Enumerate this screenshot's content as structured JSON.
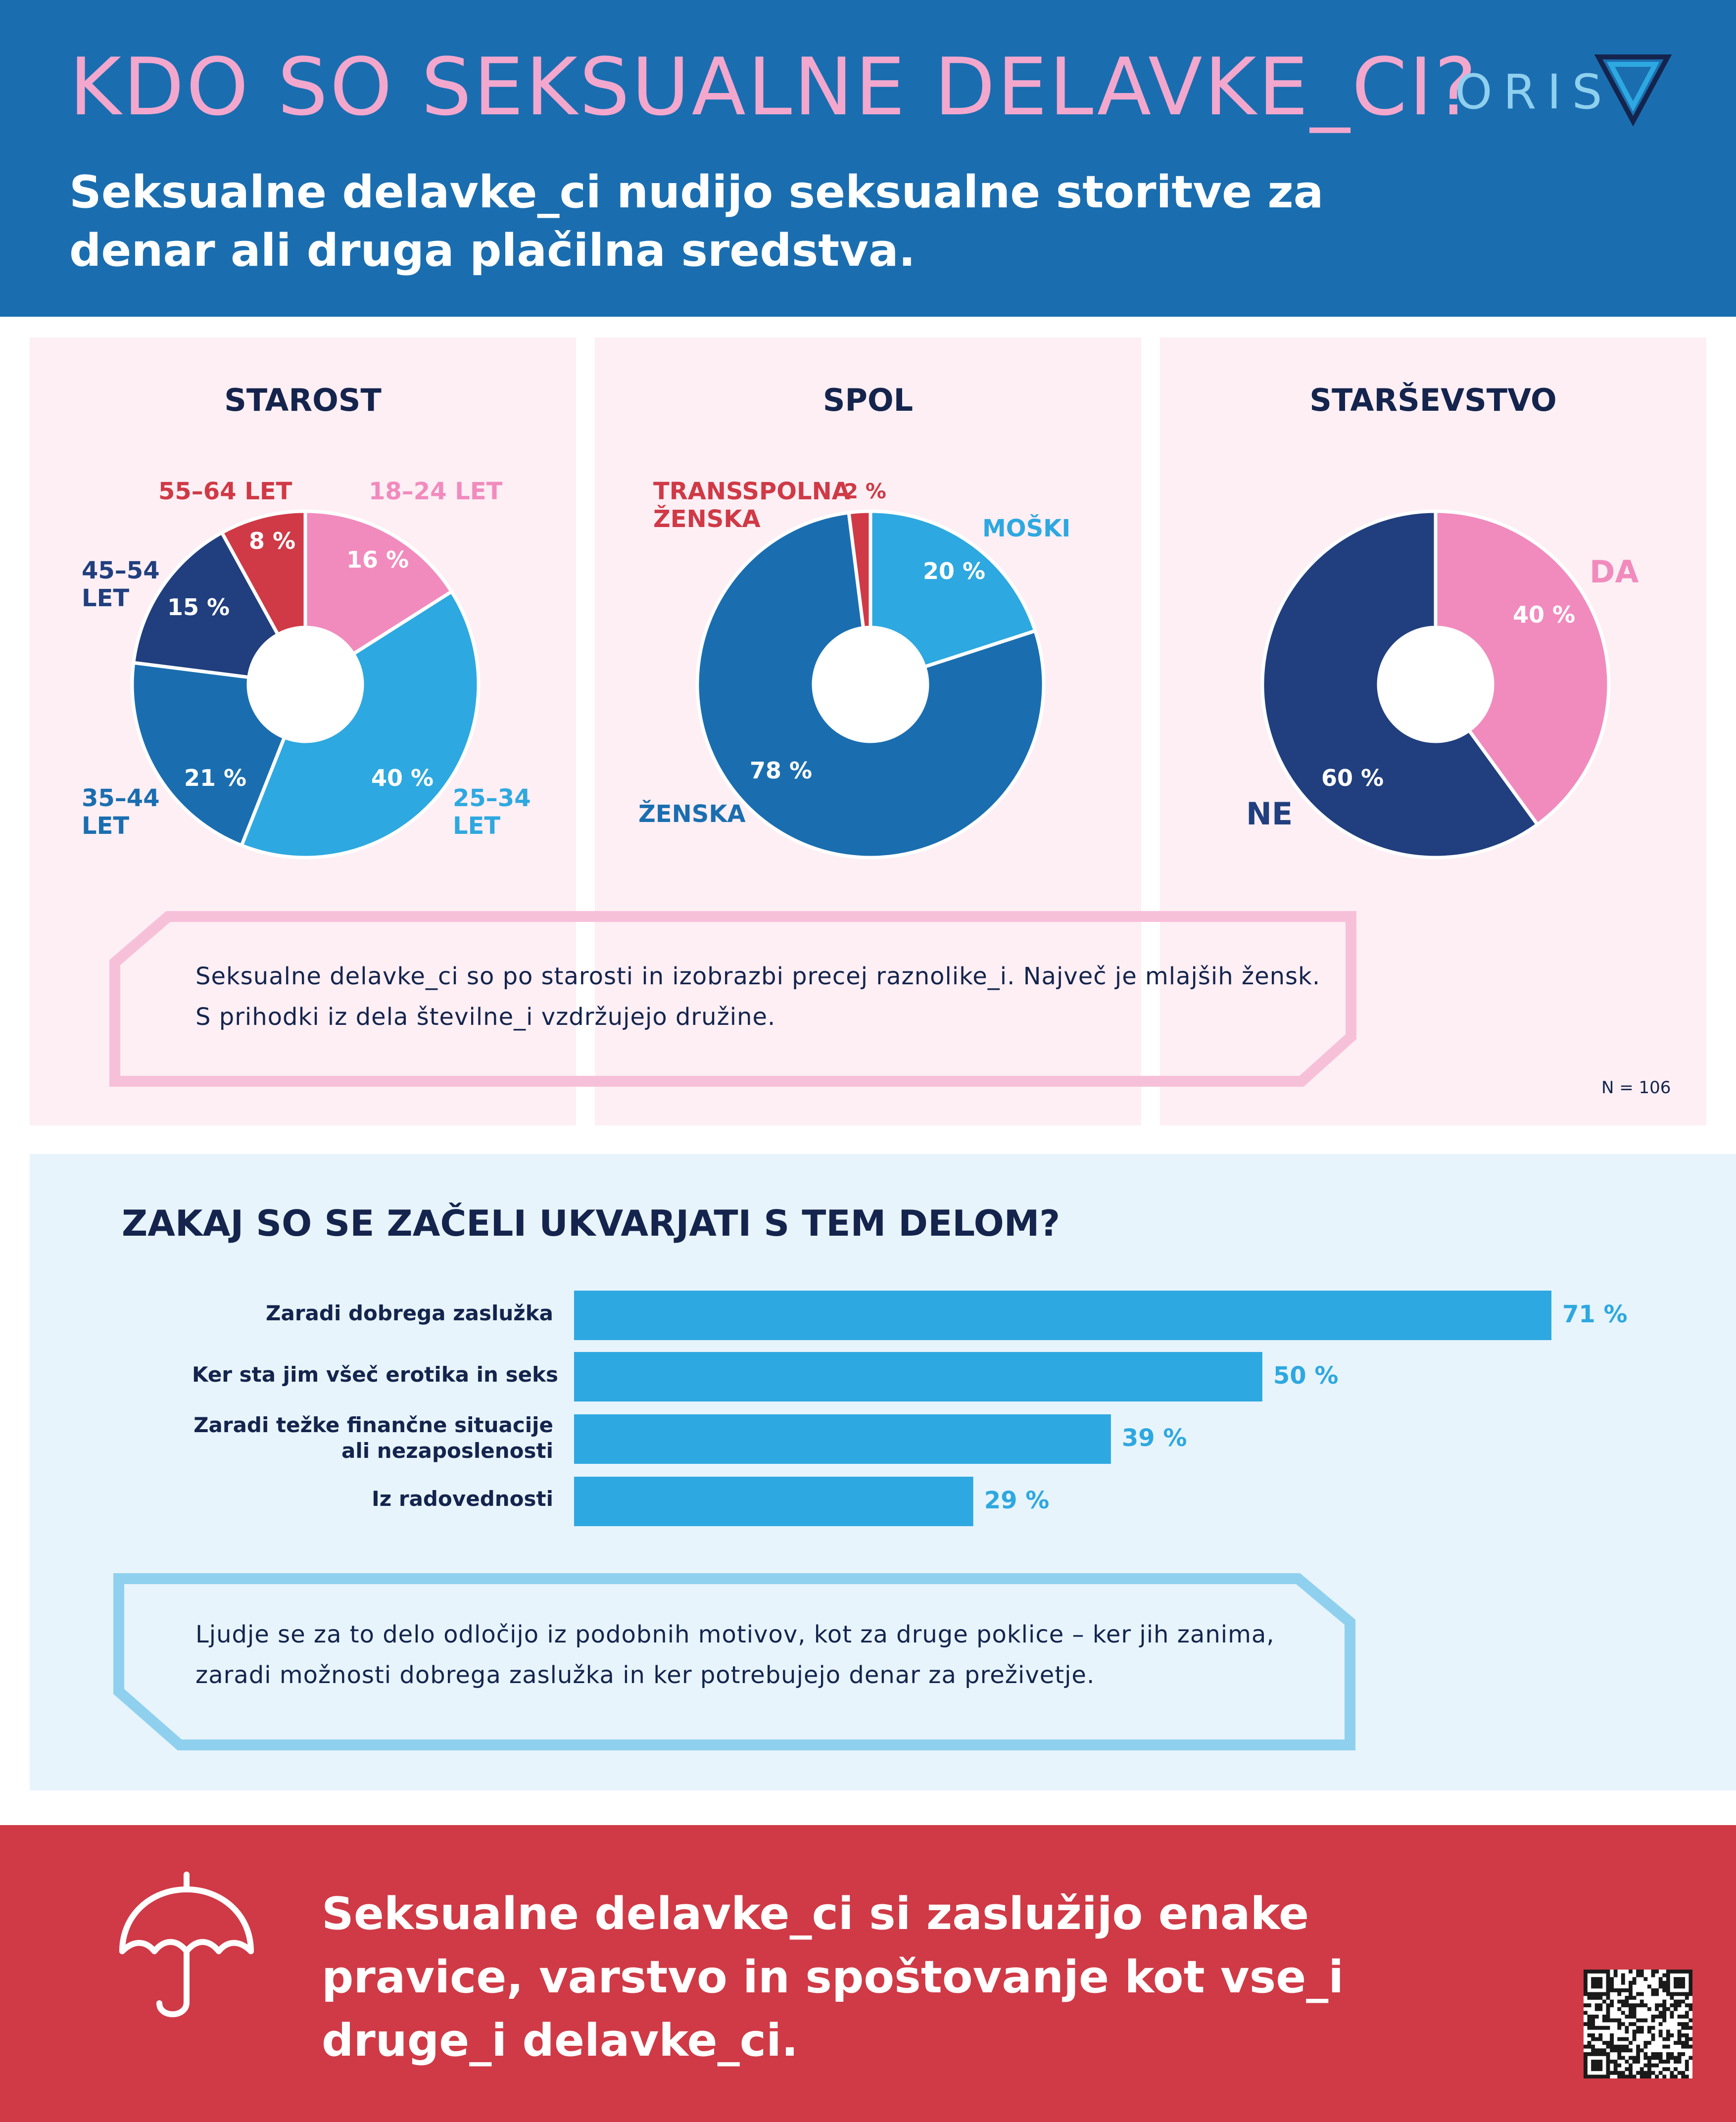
{
  "header": {
    "title": "KDO SO SEKSUALNE DELAVKE_CI?",
    "subtitle": "Seksualne delavke_ci nudijo seksualne storitve za denar ali druga plačilna sredstva.",
    "logo_text": "ORIS"
  },
  "chart_data": [
    {
      "type": "pie",
      "title": "STAROST",
      "series": [
        {
          "values": [
            16,
            40,
            21,
            15,
            8
          ]
        }
      ],
      "categories": [
        "18–24 LET",
        "25–34 LET",
        "35–44 LET",
        "45–54 LET",
        "55–64 LET"
      ],
      "value_labels": [
        "16 %",
        "40 %",
        "21 %",
        "15 %",
        "8 %"
      ],
      "colors": [
        "#f18bbd",
        "#2ea8e0",
        "#1a6eb0",
        "#213f7e",
        "#cf3a46"
      ]
    },
    {
      "type": "pie",
      "title": "SPOL",
      "series": [
        {
          "values": [
            20,
            78,
            2
          ]
        }
      ],
      "categories": [
        "MOŠKI",
        "ŽENSKA",
        "TRANSSPOLNA ŽENSKA"
      ],
      "value_labels": [
        "20 %",
        "78 %",
        "2 %"
      ],
      "colors": [
        "#2ea8e0",
        "#1a6eb0",
        "#cf3a46"
      ]
    },
    {
      "type": "pie",
      "title": "STARŠEVSTVO",
      "series": [
        {
          "values": [
            40,
            60
          ]
        }
      ],
      "categories": [
        "DA",
        "NE"
      ],
      "value_labels": [
        "40 %",
        "60 %"
      ],
      "colors": [
        "#f18bbd",
        "#213f7e"
      ]
    },
    {
      "type": "bar",
      "orientation": "horizontal",
      "title": "ZAKAJ SO SE ZAČELI UKVARJATI S TEM DELOM?",
      "categories": [
        "Zaradi dobrega zaslužka",
        "Ker sta jim všeč erotika in seks",
        "Zaradi težke finančne situacije ali nezaposlenosti",
        "Iz radovednosti"
      ],
      "values": [
        71,
        50,
        39,
        29
      ],
      "value_labels": [
        "71 %",
        "50 %",
        "39 %",
        "29 %"
      ],
      "color": "#2ea8e0"
    }
  ],
  "age_labels": {
    "a1824": "18–24 LET",
    "a2534_1": "25–34",
    "a2534_2": "LET",
    "a3544_1": "35–44",
    "a3544_2": "LET",
    "a4554_1": "45–54",
    "a4554_2": "LET",
    "a5564": "55–64 LET"
  },
  "gender_labels": {
    "trans_1": "TRANSSPOLNA",
    "trans_2": "ŽENSKA",
    "male": "MOŠKI",
    "female": "ŽENSKA"
  },
  "parent_labels": {
    "yes": "DA",
    "no": "NE"
  },
  "note_demographics": {
    "line1": "Seksualne delavke_ci so po starosti in izobrazbi precej raznolike_i. Največ je mlajših žensk.",
    "line2": "S prihodki iz dela številne_i vzdržujejo družine."
  },
  "sample_size": "N = 106",
  "motives_labels": {
    "m1": "Zaradi dobrega zaslužka",
    "m2": "Ker sta jim všeč erotika in seks",
    "m3_1": "Zaradi težke finančne situacije",
    "m3_2": "ali nezaposlenosti",
    "m4": "Iz radovednosti"
  },
  "note_motives": {
    "line1": "Ljudje se za to delo odločijo iz podobnih motivov, kot za druge poklice – ker jih zanima,",
    "line2": "zaradi možnosti dobrega zaslužka in ker potrebujejo denar za preživetje."
  },
  "footer": {
    "text": "Seksualne delavke_ci si zaslužijo enake pravice, varstvo in spoštovanje kot vse_i druge_i delavke_ci."
  }
}
